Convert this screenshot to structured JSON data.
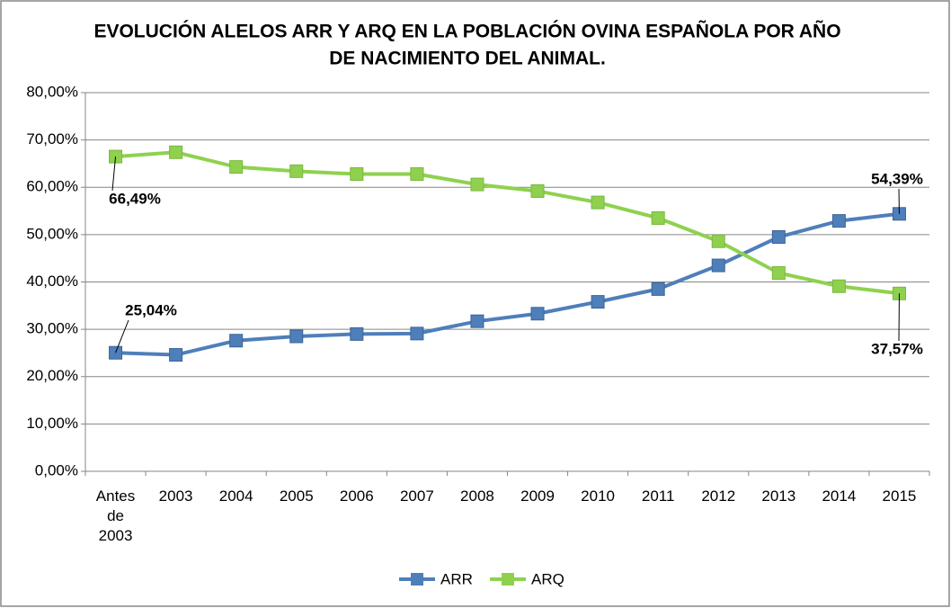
{
  "chart_data": {
    "type": "line",
    "title": [
      "EVOLUCIÓN ALELOS ARR Y ARQ EN LA POBLACIÓN OVINA ESPAÑOLA POR AÑO",
      "DE NACIMIENTO DEL ANIMAL."
    ],
    "categories": [
      "Antes de 2003",
      "2003",
      "2004",
      "2005",
      "2006",
      "2007",
      "2008",
      "2009",
      "2010",
      "2011",
      "2012",
      "2013",
      "2014",
      "2015"
    ],
    "series": [
      {
        "name": "ARR",
        "color": "#4f7fba",
        "values": [
          25.04,
          24.6,
          27.6,
          28.5,
          29.0,
          29.1,
          31.7,
          33.3,
          35.8,
          38.5,
          43.5,
          49.5,
          52.9,
          54.39
        ],
        "value_labels": [
          "25,04%",
          null,
          null,
          null,
          null,
          null,
          null,
          null,
          null,
          null,
          null,
          null,
          null,
          "54,39%"
        ]
      },
      {
        "name": "ARQ",
        "color": "#8fd14f",
        "values": [
          66.49,
          67.4,
          64.3,
          63.4,
          62.8,
          62.8,
          60.6,
          59.2,
          56.8,
          53.5,
          48.6,
          41.9,
          39.1,
          37.57
        ],
        "value_labels": [
          "66,49%",
          null,
          null,
          null,
          null,
          null,
          null,
          null,
          null,
          null,
          null,
          null,
          null,
          "37,57%"
        ]
      }
    ],
    "ylim": [
      0,
      80
    ],
    "yticks": [
      {
        "value": 0,
        "label": "0,00%"
      },
      {
        "value": 10,
        "label": "10,00%"
      },
      {
        "value": 20,
        "label": "20,00%"
      },
      {
        "value": 30,
        "label": "30,00%"
      },
      {
        "value": 40,
        "label": "40,00%"
      },
      {
        "value": 50,
        "label": "50,00%"
      },
      {
        "value": 60,
        "label": "60,00%"
      },
      {
        "value": 70,
        "label": "70,00%"
      },
      {
        "value": 80,
        "label": "80,00%"
      }
    ],
    "grid": true,
    "legend": "bottom"
  }
}
